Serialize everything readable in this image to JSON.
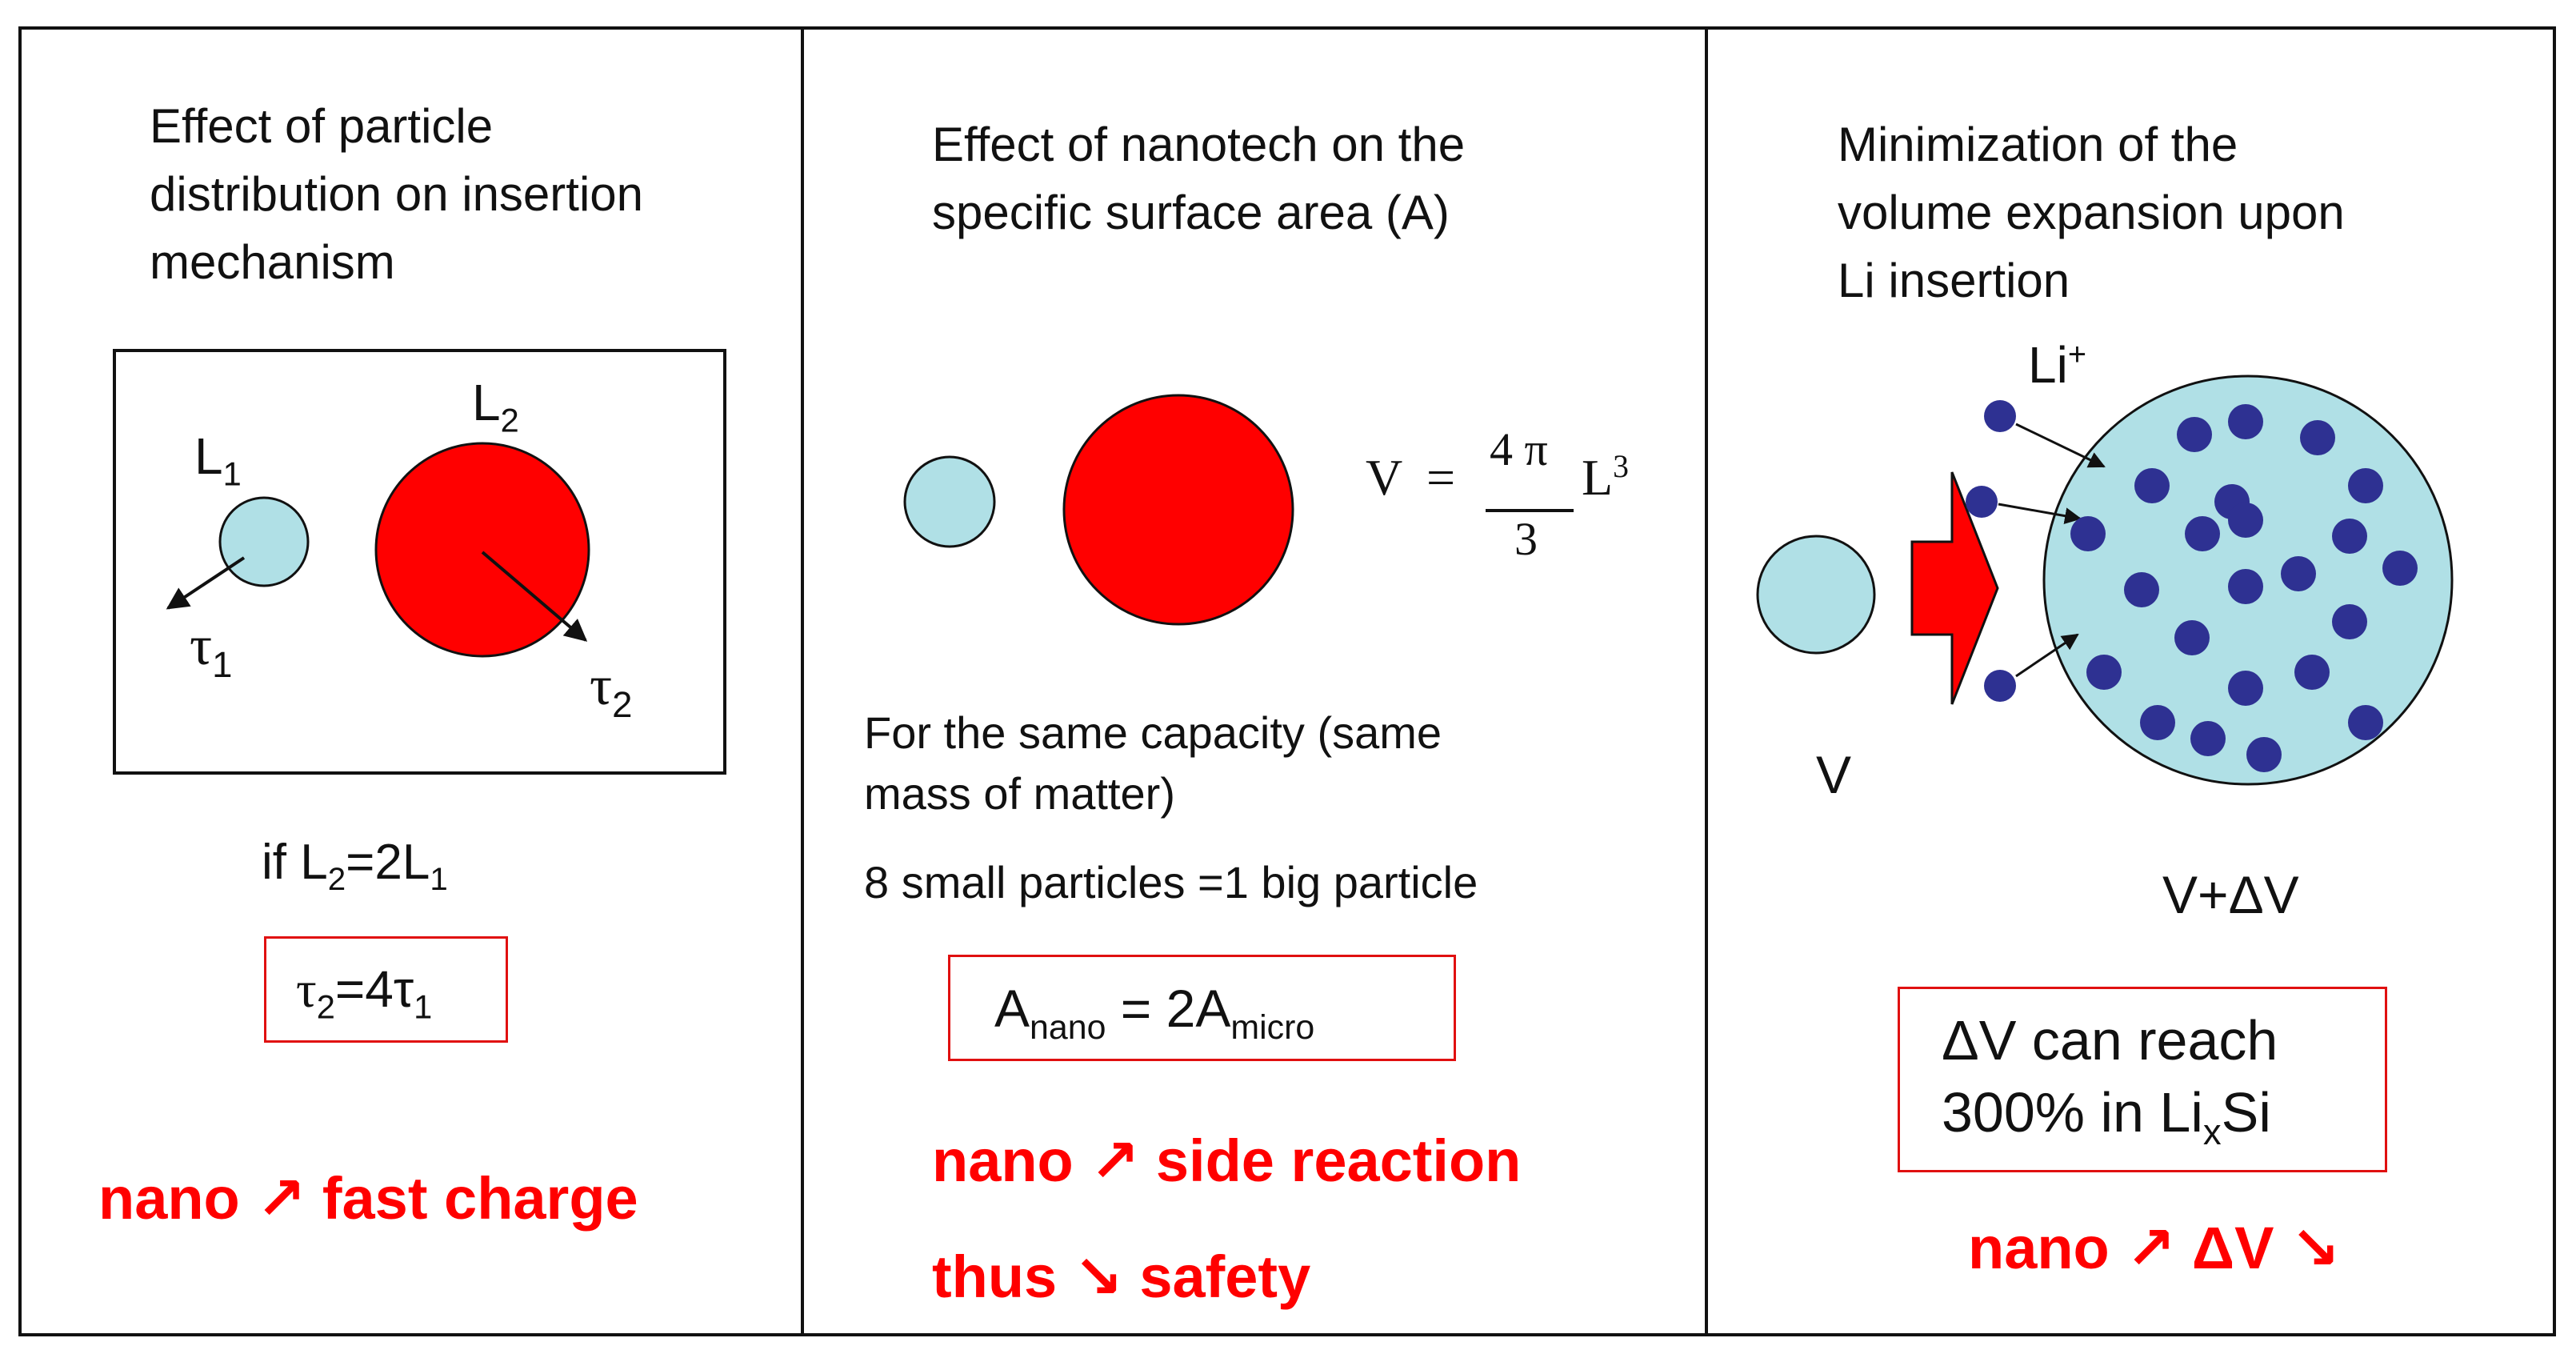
{
  "panel1": {
    "title_lines": [
      "Effect of particle",
      "distribution on insertion",
      "mechanism"
    ],
    "l1": "L",
    "l1_sub": "1",
    "l2": "L",
    "l2_sub": "2",
    "tau1": "τ",
    "tau1_sub": "1",
    "tau2": "τ",
    "tau2_sub": "2",
    "cond_prefix": "if L",
    "cond_sub1": "2",
    "cond_mid": "=2L",
    "cond_sub2": "1",
    "result_a": "τ",
    "result_sub1": "2",
    "result_mid": "=4τ",
    "result_sub2": "1",
    "conclusion": "nano ↗ fast charge"
  },
  "panel2": {
    "title_lines": [
      "Effect of nanotech on the",
      "specific surface area (A)"
    ],
    "formula_v": "V",
    "formula_eq": "=",
    "formula_num": "4 π",
    "formula_den": "3",
    "formula_l": "L",
    "formula_exp": "3",
    "body_lines": [
      "For the same capacity (same",
      "mass of matter)"
    ],
    "particles_line": "8 small particles =1 big particle",
    "area_a1": "A",
    "area_sub1": "nano",
    "area_mid": " = 2A",
    "area_sub2": "micro",
    "conclusion_lines": [
      "nano ↗ side reaction",
      "thus ↘ safety"
    ]
  },
  "panel3": {
    "title_lines": [
      "Minimization of the",
      "volume expansion upon",
      "Li insertion"
    ],
    "li_label": "Li",
    "li_sup": "+",
    "v_label": "V",
    "vdv_label": "V+ΔV",
    "box_line1": "ΔV can reach",
    "box_line2_a": "300% in Li",
    "box_line2_sub": "x",
    "box_line2_b": "Si",
    "conclusion": "nano ↗ ΔV ↘"
  },
  "colors": {
    "red": "#ff0000",
    "small_particle": "#b0e0e6",
    "li_atom": "#2e3192",
    "border": "#111111"
  }
}
